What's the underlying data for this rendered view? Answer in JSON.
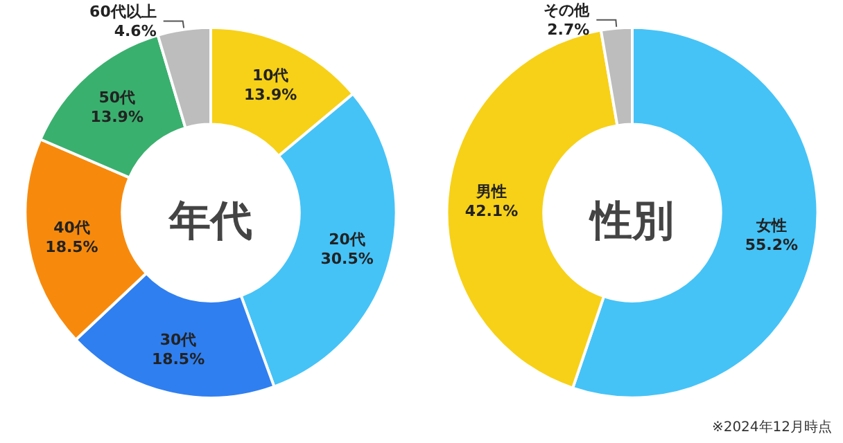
{
  "chart_data": [
    {
      "type": "donut",
      "title": "年代",
      "categories": [
        "10代",
        "20代",
        "30代",
        "40代",
        "50代",
        "60代以上"
      ],
      "values": [
        13.9,
        30.5,
        18.5,
        18.5,
        13.9,
        4.6
      ],
      "colors": [
        "#f7d117",
        "#45c3f7",
        "#2f7ff0",
        "#f78a0c",
        "#3ab06e",
        "#bdbdbd"
      ],
      "value_labels": [
        "13.9%",
        "30.5%",
        "18.5%",
        "18.5%",
        "13.9%",
        "4.6%"
      ]
    },
    {
      "type": "donut",
      "title": "性別",
      "categories": [
        "女性",
        "男性",
        "その他"
      ],
      "values": [
        55.2,
        42.1,
        2.7
      ],
      "colors": [
        "#45c3f7",
        "#f7d117",
        "#bdbdbd"
      ],
      "value_labels": [
        "55.2%",
        "42.1%",
        "2.7%"
      ],
      "annotations": [
        "※2024年12月時点"
      ]
    }
  ]
}
